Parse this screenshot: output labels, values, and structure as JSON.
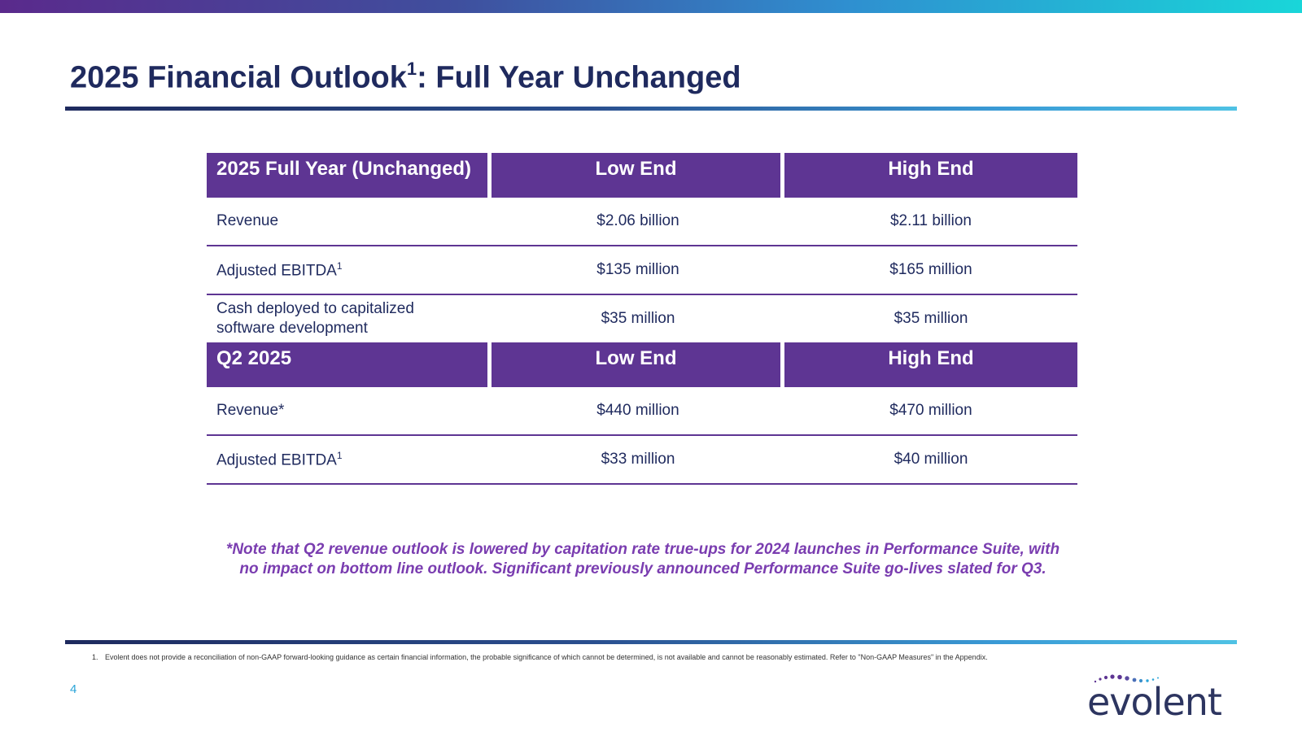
{
  "slide": {
    "title": "2025 Financial Outlook",
    "title_superscript": "1",
    "title_suffix": ": Full Year Unchanged",
    "page_number": "4"
  },
  "table": {
    "full_year": {
      "header": [
        "2025 Full Year (Unchanged)",
        "Low End",
        "High End"
      ],
      "rows": [
        {
          "label": "Revenue",
          "label_sup": "",
          "low": "$2.06 billion",
          "high": "$2.11 billion"
        },
        {
          "label": "Adjusted EBITDA",
          "label_sup": "1",
          "low": "$135 million",
          "high": "$165 million"
        },
        {
          "label_line1": "Cash deployed to capitalized",
          "label_line2": "software development",
          "low": "$35 million",
          "high": "$35 million"
        }
      ]
    },
    "quarter": {
      "header": [
        "Q2 2025",
        "Low End",
        "High End"
      ],
      "rows": [
        {
          "label": "Revenue*",
          "label_sup": "",
          "low": "$440 million",
          "high": "$470 million"
        },
        {
          "label": "Adjusted EBITDA",
          "label_sup": "1",
          "low": "$33 million",
          "high": "$40 million"
        }
      ]
    }
  },
  "note": {
    "line1": "*Note that Q2 revenue outlook is lowered by capitation rate true-ups for 2024 launches in Performance Suite, with",
    "line2": "no impact on bottom line outlook.  Significant previously announced Performance Suite go-lives slated for Q3."
  },
  "footnote": {
    "number": "1.",
    "text": "Evolent does not provide a reconciliation of non-GAAP forward-looking guidance as certain financial information, the probable significance of which cannot be determined, is not available and cannot be  reasonably estimated. Refer to \"Non-GAAP Measures\" in the Appendix."
  },
  "logo": {
    "text": "evolent",
    "color": "#2d3560",
    "dot_colors": [
      "#5e3593",
      "#2aa4d8"
    ]
  },
  "colors": {
    "header_fill": "#5e3593",
    "title": "#1f2a5e",
    "note": "#7a3db0",
    "page_number": "#2aa4d8"
  }
}
